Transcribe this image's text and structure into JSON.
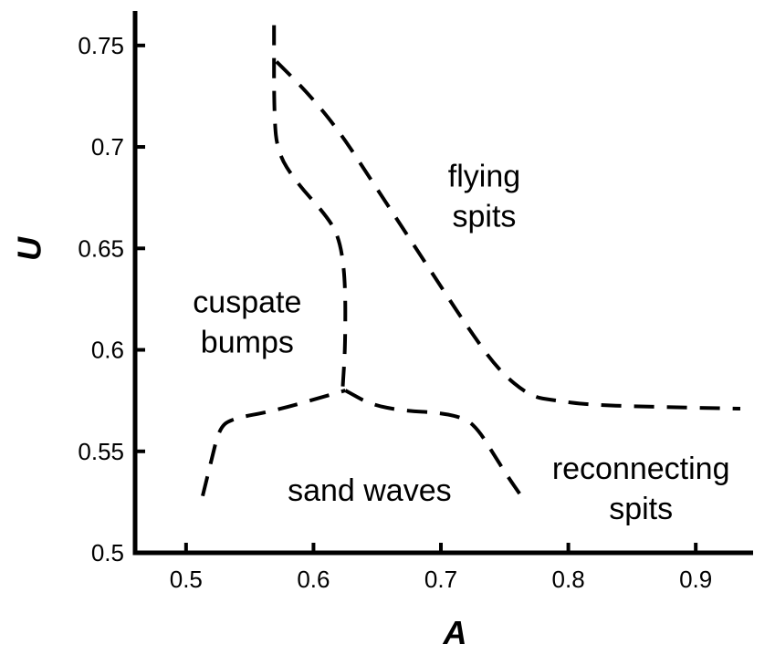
{
  "chart_data": {
    "type": "line",
    "xlabel": "A",
    "ylabel": "U",
    "xlim": [
      0.46,
      0.945
    ],
    "ylim": [
      0.5,
      0.767
    ],
    "x_ticks": [
      0.5,
      0.6,
      0.7,
      0.8,
      0.9
    ],
    "x_tick_labels": [
      "0.5",
      "0.6",
      "0.7",
      "0.8",
      "0.9"
    ],
    "y_ticks": [
      0.5,
      0.55,
      0.6,
      0.65,
      0.7,
      0.75
    ],
    "y_tick_labels": [
      "0.5",
      "0.55",
      "0.6",
      "0.65",
      "0.7",
      "0.75"
    ],
    "grid": false,
    "series": [
      {
        "x": [
          0.569,
          0.569,
          0.572,
          0.586,
          0.609,
          0.62,
          0.625,
          0.625,
          0.623
        ],
        "y": [
          0.76,
          0.715,
          0.697,
          0.683,
          0.667,
          0.656,
          0.636,
          0.602,
          0.582
        ]
      },
      {
        "x": [
          0.571,
          0.595,
          0.62,
          0.645,
          0.67,
          0.695,
          0.72,
          0.745,
          0.77,
          0.79,
          0.815,
          0.86,
          0.935
        ],
        "y": [
          0.742,
          0.727,
          0.708,
          0.684,
          0.66,
          0.636,
          0.612,
          0.59,
          0.577,
          0.575,
          0.573,
          0.572,
          0.571
        ]
      },
      {
        "x": [
          0.513,
          0.52,
          0.526,
          0.535,
          0.57,
          0.625
        ],
        "y": [
          0.528,
          0.546,
          0.561,
          0.566,
          0.57,
          0.58
        ]
      },
      {
        "x": [
          0.625,
          0.645,
          0.67,
          0.7,
          0.72,
          0.73,
          0.74,
          0.752,
          0.763
        ],
        "y": [
          0.58,
          0.573,
          0.57,
          0.569,
          0.566,
          0.56,
          0.55,
          0.538,
          0.528
        ]
      }
    ],
    "annotations": [
      {
        "lines": [
          "flying",
          "spits"
        ],
        "x": 0.734,
        "y": 0.676
      },
      {
        "lines": [
          "cuspate",
          "bumps"
        ],
        "x": 0.548,
        "y": 0.614
      },
      {
        "lines": [
          "sand waves"
        ],
        "x": 0.644,
        "y": 0.531
      },
      {
        "lines": [
          "reconnecting",
          "spits"
        ],
        "x": 0.857,
        "y": 0.532
      }
    ]
  }
}
